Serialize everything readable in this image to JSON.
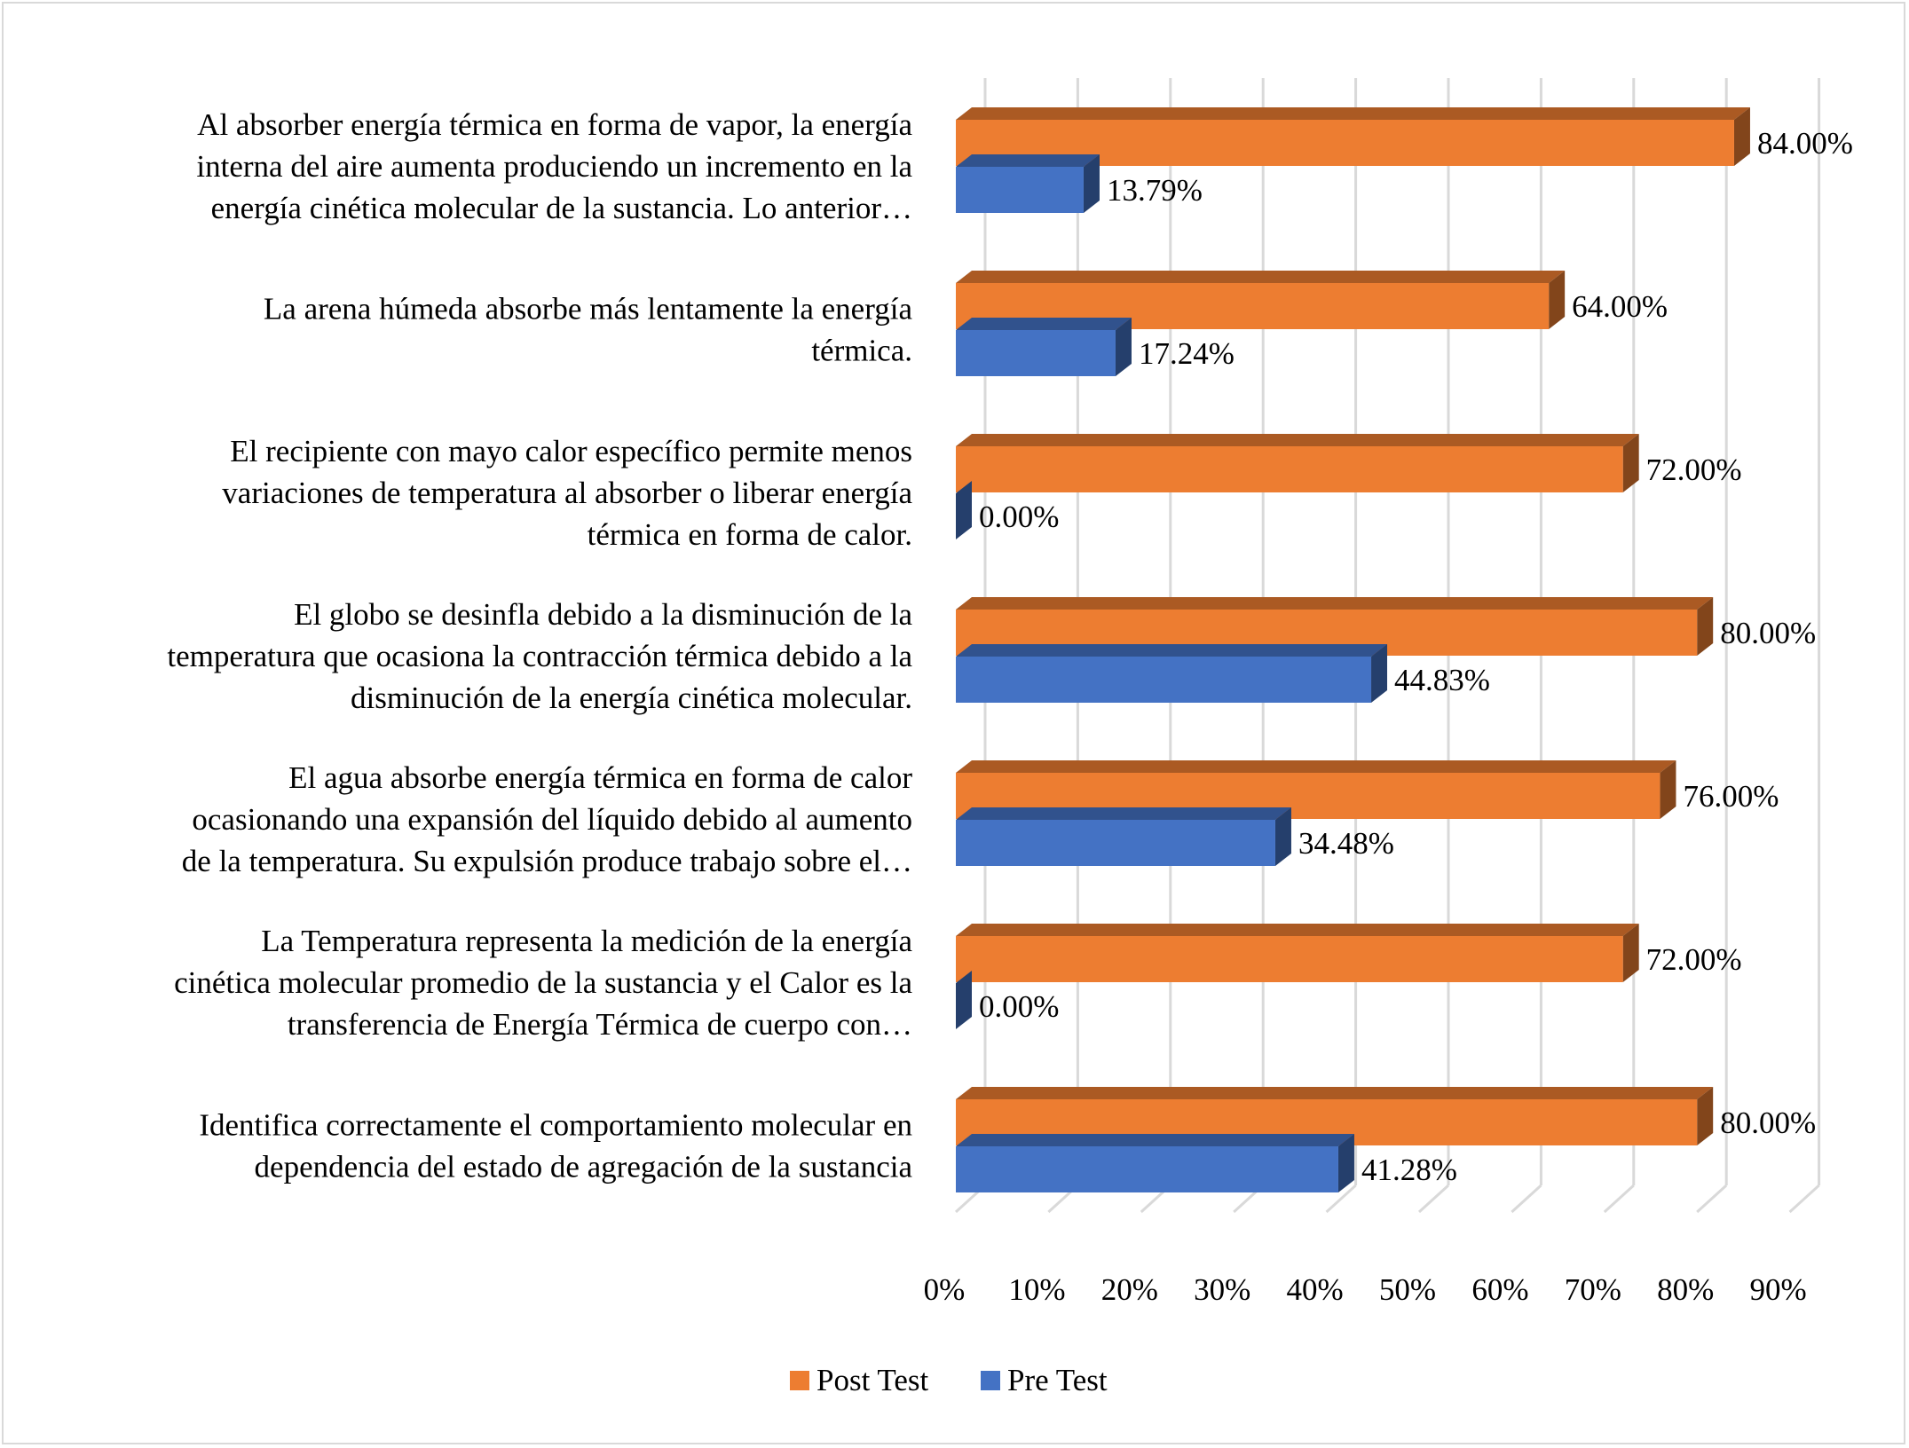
{
  "chart_data": {
    "type": "bar",
    "orientation": "horizontal",
    "style": "3d-clustered",
    "title": "",
    "xlabel": "",
    "ylabel": "",
    "xlim": [
      0,
      90
    ],
    "x_ticks": [
      "0%",
      "10%",
      "20%",
      "30%",
      "40%",
      "50%",
      "60%",
      "70%",
      "80%",
      "90%"
    ],
    "grid": true,
    "legend_position": "bottom",
    "categories": [
      [
        "Al absorber energía térmica en forma de vapor, la energía",
        "interna del aire aumenta produciendo un incremento en la",
        "energía cinética molecular de la sustancia. Lo anterior…"
      ],
      [
        "La arena húmeda absorbe más lentamente la energía",
        "térmica."
      ],
      [
        "El recipiente con mayo calor específico permite menos",
        "variaciones de temperatura al absorber o liberar energía",
        "térmica en forma de calor."
      ],
      [
        "El globo se desinfla debido a la disminución de la",
        "temperatura que ocasiona la contracción térmica debido a la",
        "disminución de la energía cinética molecular."
      ],
      [
        "El agua absorbe energía térmica en forma de calor",
        "ocasionando una expansión del líquido debido al aumento",
        "de la temperatura. Su expulsión produce trabajo sobre el…"
      ],
      [
        "La Temperatura representa la medición de la energía",
        "cinética molecular promedio de la sustancia y el Calor es la",
        "transferencia de Energía Térmica de cuerpo con…"
      ],
      [
        "Identifica correctamente el comportamiento molecular en",
        "dependencia del estado de agregación de la sustancia"
      ]
    ],
    "series": [
      {
        "name": "Post Test",
        "color": "#ED7D31",
        "values": [
          84.0,
          64.0,
          72.0,
          80.0,
          76.0,
          72.0,
          80.0
        ],
        "labels": [
          "84.00%",
          "64.00%",
          "72.00%",
          "80.00%",
          "76.00%",
          "72.00%",
          "80.00%"
        ]
      },
      {
        "name": "Pre Test",
        "color": "#4472C4",
        "values": [
          13.79,
          17.24,
          0.0,
          44.83,
          34.48,
          0.0,
          41.28
        ],
        "labels": [
          "13.79%",
          "17.24%",
          "0.00%",
          "44.83%",
          "34.48%",
          "0.00%",
          "41.28%"
        ]
      }
    ],
    "legend": [
      "Post Test",
      "Pre Test"
    ]
  }
}
